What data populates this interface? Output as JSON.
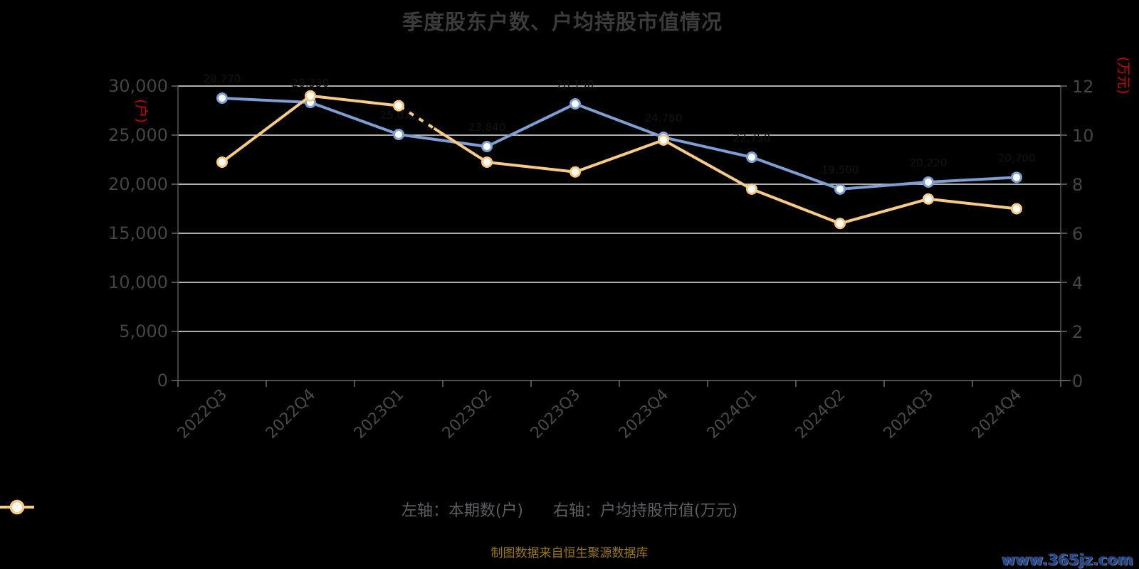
{
  "title": "季度股东户数、户均持股市值情况",
  "chart_data": {
    "type": "line",
    "categories": [
      "2022Q3",
      "2022Q4",
      "2023Q1",
      "2023Q2",
      "2023Q3",
      "2023Q4",
      "2024Q1",
      "2024Q2",
      "2024Q3",
      "2024Q4"
    ],
    "series": [
      {
        "name": "左轴：本期数(户)",
        "axis": "left",
        "color": "#7d9fd3",
        "values": [
          28770,
          28330,
          25070,
          23840,
          28190,
          24780,
          22750,
          19500,
          20220,
          20700
        ],
        "point_labels": [
          "28,770",
          "28,330",
          "25,070",
          "23,840",
          "28,190",
          "24,780",
          "22,750",
          "19,500",
          "20,220",
          "20,700"
        ]
      },
      {
        "name": "右轴：户均持股市值(万元)",
        "axis": "right",
        "color": "#f7cb85",
        "values": [
          8.9,
          11.6,
          11.2,
          8.9,
          8.5,
          9.8,
          7.8,
          6.4,
          7.4,
          7.0
        ],
        "point_labels": []
      }
    ],
    "left_axis": {
      "unit": "(户)",
      "min": 0,
      "max": 30000,
      "ticks": [
        "30,000",
        "25,000",
        "20,000",
        "15,000",
        "10,000",
        "5,000",
        "0"
      ]
    },
    "right_axis": {
      "unit": "(万元)",
      "min": 0,
      "max": 12,
      "ticks": [
        "12",
        "10",
        "8",
        "6",
        "4",
        "2",
        "0"
      ]
    },
    "grid": true,
    "legend_position": "bottom",
    "annotations": {
      "dashed_overlay": {
        "series": 1,
        "from_index": 2,
        "to_index": 3,
        "start_frac": 0.06,
        "end_frac": 0.4
      }
    }
  },
  "legend": {
    "items": [
      {
        "label": "左轴：本期数(户)",
        "color": "#7d9fd3"
      },
      {
        "label": "右轴：户均持股市值(万元)",
        "color": "#f7cb85"
      }
    ]
  },
  "footer": {
    "source": "制图数据来自恒生聚源数据库",
    "watermark": "www.365jz.com"
  },
  "colors": {
    "background": "#000000",
    "grid_line": "#e8e8e8",
    "axis_line": "#6e6e6e",
    "tick_label": "#454545",
    "axis_unit_red": "#d40000",
    "point_fill": "#ffffff",
    "point_label": "#141414",
    "title": "#3b3b3d",
    "legend_text": "#5d5e62",
    "source_text": "#9a7718",
    "watermark_text": "#1d4696"
  }
}
